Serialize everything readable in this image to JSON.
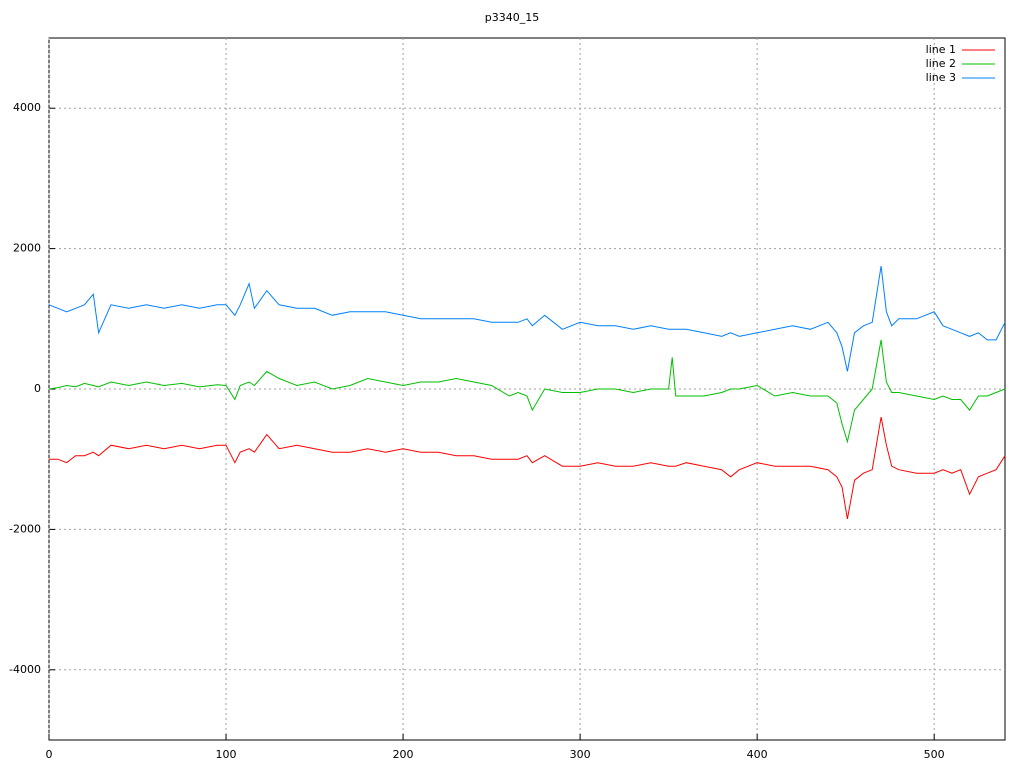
{
  "chart_data": {
    "type": "line",
    "title": "p3340_15",
    "x": [
      0,
      5,
      10,
      15,
      20,
      25,
      28,
      35,
      45,
      55,
      65,
      75,
      85,
      95,
      100,
      105,
      108,
      113,
      116,
      123,
      130,
      140,
      150,
      160,
      170,
      180,
      190,
      200,
      210,
      220,
      230,
      240,
      250,
      260,
      265,
      270,
      273,
      280,
      290,
      300,
      310,
      320,
      330,
      340,
      350,
      352,
      354,
      360,
      370,
      380,
      385,
      390,
      400,
      410,
      420,
      430,
      440,
      445,
      448,
      451,
      455,
      460,
      465,
      470,
      473,
      476,
      480,
      490,
      500,
      505,
      510,
      515,
      520,
      525,
      530,
      535,
      540
    ],
    "series": [
      {
        "name": "line 1",
        "color": "#ff0000",
        "values": [
          -1000,
          -1000,
          -1050,
          -950,
          -950,
          -900,
          -950,
          -800,
          -850,
          -800,
          -850,
          -800,
          -850,
          -800,
          -800,
          -1050,
          -900,
          -850,
          -900,
          -650,
          -850,
          -800,
          -850,
          -900,
          -900,
          -850,
          -900,
          -850,
          -900,
          -900,
          -950,
          -950,
          -1000,
          -1000,
          -1000,
          -950,
          -1050,
          -950,
          -1100,
          -1100,
          -1050,
          -1100,
          -1100,
          -1050,
          -1100,
          -1100,
          -1100,
          -1050,
          -1100,
          -1150,
          -1250,
          -1150,
          -1050,
          -1100,
          -1100,
          -1100,
          -1150,
          -1250,
          -1400,
          -1850,
          -1300,
          -1200,
          -1150,
          -400,
          -800,
          -1100,
          -1150,
          -1200,
          -1200,
          -1150,
          -1200,
          -1150,
          -1500,
          -1250,
          -1200,
          -1150,
          -950
        ]
      },
      {
        "name": "line 2",
        "color": "#00c000",
        "values": [
          0,
          20,
          50,
          30,
          80,
          50,
          30,
          100,
          50,
          100,
          50,
          80,
          30,
          60,
          50,
          -150,
          50,
          100,
          50,
          250,
          150,
          50,
          100,
          0,
          50,
          150,
          100,
          50,
          100,
          100,
          150,
          100,
          50,
          -100,
          -50,
          -100,
          -300,
          0,
          -50,
          -50,
          0,
          0,
          -50,
          0,
          0,
          450,
          -100,
          -100,
          -100,
          -50,
          0,
          0,
          50,
          -100,
          -50,
          -100,
          -100,
          -200,
          -500,
          -750,
          -300,
          -150,
          0,
          700,
          100,
          -50,
          -50,
          -100,
          -150,
          -100,
          -150,
          -150,
          -300,
          -100,
          -100,
          -50,
          0
        ]
      },
      {
        "name": "line 3",
        "color": "#0080ff",
        "values": [
          1200,
          1150,
          1100,
          1150,
          1200,
          1350,
          800,
          1200,
          1150,
          1200,
          1150,
          1200,
          1150,
          1200,
          1200,
          1050,
          1200,
          1500,
          1150,
          1400,
          1200,
          1150,
          1150,
          1050,
          1100,
          1100,
          1100,
          1050,
          1000,
          1000,
          1000,
          1000,
          950,
          950,
          950,
          1000,
          900,
          1050,
          850,
          950,
          900,
          900,
          850,
          900,
          850,
          850,
          850,
          850,
          800,
          750,
          800,
          750,
          800,
          850,
          900,
          850,
          950,
          800,
          600,
          250,
          800,
          900,
          950,
          1750,
          1100,
          900,
          1000,
          1000,
          1100,
          900,
          850,
          800,
          750,
          800,
          700,
          700,
          950
        ]
      }
    ],
    "xlim": [
      0,
      540
    ],
    "ylim": [
      -5000,
      5000
    ],
    "xticks": [
      0,
      100,
      200,
      300,
      400,
      500
    ],
    "yticks": [
      -4000,
      -2000,
      0,
      2000,
      4000
    ],
    "grid": true,
    "legend": "top-right"
  }
}
